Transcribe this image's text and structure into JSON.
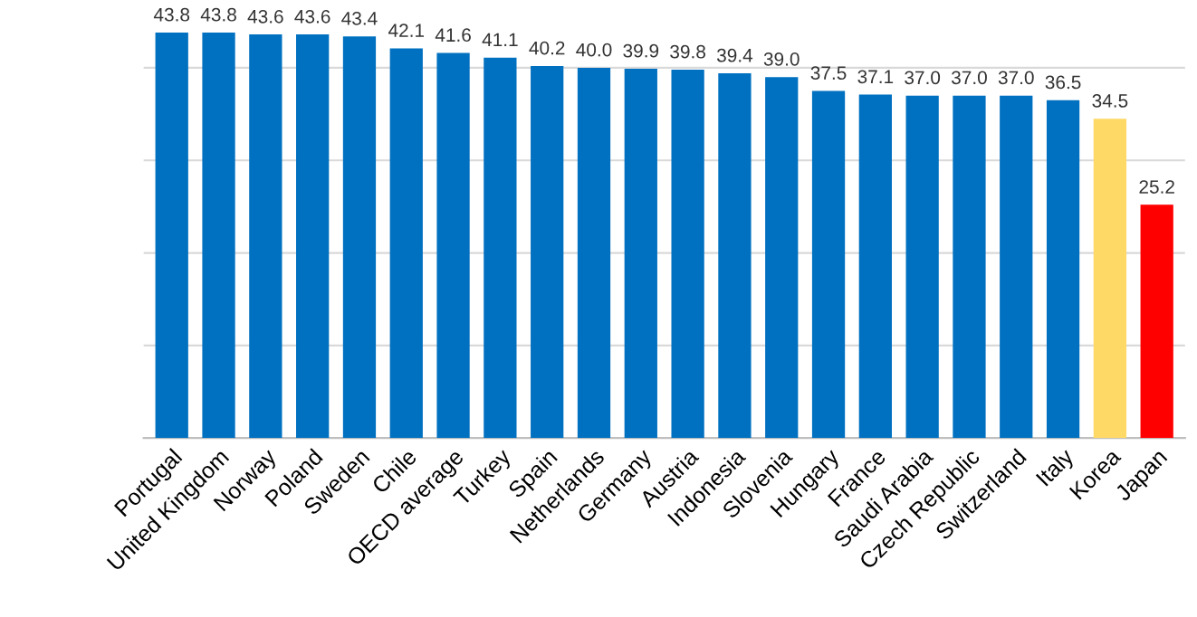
{
  "chart_data": {
    "type": "bar",
    "categories": [
      "Portugal",
      "United Kingdom",
      "Norway",
      "Poland",
      "Sweden",
      "Chile",
      "OECD average",
      "Turkey",
      "Spain",
      "Netherlands",
      "Germany",
      "Austria",
      "Indonesia",
      "Slovenia",
      "Hungary",
      "France",
      "Saudi Arabia",
      "Czech Republic",
      "Switzerland",
      "Italy",
      "Korea",
      "Japan"
    ],
    "values": [
      43.8,
      43.8,
      43.6,
      43.6,
      43.4,
      42.1,
      41.6,
      41.1,
      40.2,
      40.0,
      39.9,
      39.8,
      39.4,
      39.0,
      37.5,
      37.1,
      37.0,
      37.0,
      37.0,
      36.5,
      34.5,
      25.2
    ],
    "colors": [
      "#0070c0",
      "#0070c0",
      "#0070c0",
      "#0070c0",
      "#0070c0",
      "#0070c0",
      "#0070c0",
      "#0070c0",
      "#0070c0",
      "#0070c0",
      "#0070c0",
      "#0070c0",
      "#0070c0",
      "#0070c0",
      "#0070c0",
      "#0070c0",
      "#0070c0",
      "#0070c0",
      "#0070c0",
      "#0070c0",
      "#ffd966",
      "#ff0000"
    ],
    "value_labels": [
      "43.8",
      "43.8",
      "43.6",
      "43.6",
      "43.4",
      "42.1",
      "41.6",
      "41.1",
      "40.2",
      "40.0",
      "39.9",
      "39.8",
      "39.4",
      "39.0",
      "37.5",
      "37.1",
      "37.0",
      "37.0",
      "37.0",
      "36.5",
      "34.5",
      "25.2"
    ],
    "grid": "y",
    "tick_labels": "x"
  }
}
